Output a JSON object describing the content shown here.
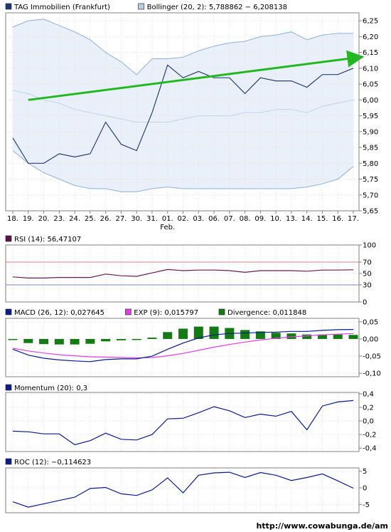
{
  "watermark": "http://www.cowabunga.de/am",
  "chart_data": [
    {
      "id": "price",
      "type": "line",
      "x_labels": [
        "18.",
        "19.",
        "20.",
        "23.",
        "24.",
        "25.",
        "26.",
        "27.",
        "30.",
        "31.",
        "01.",
        "02.",
        "03.",
        "06.",
        "07.",
        "08.",
        "09.",
        "10.",
        "13.",
        "14.",
        "15.",
        "16.",
        "17."
      ],
      "month_marker": {
        "label": "Feb.",
        "under": "01."
      },
      "ylim": [
        5.65,
        6.275
      ],
      "yticks": [
        "5,65",
        "5,70",
        "5,75",
        "5,80",
        "5,85",
        "5,90",
        "5,95",
        "6,00",
        "6,05",
        "6,10",
        "6,15",
        "6,20",
        "6,25"
      ],
      "legend": [
        {
          "label": "TAG Immobilien (Frankfurt)",
          "color": "#1c3a70"
        },
        {
          "label": "Bollinger (20, 2): 5,788862 − 6,208138",
          "color": "#b9cde6"
        }
      ],
      "series": [
        {
          "name": "TAG Immobilien (Frankfurt)",
          "color": "#2b3f73",
          "values": [
            5.88,
            5.8,
            5.8,
            5.83,
            5.82,
            5.83,
            5.93,
            5.86,
            5.84,
            5.96,
            6.11,
            6.07,
            6.09,
            6.07,
            6.07,
            6.02,
            6.07,
            6.06,
            6.06,
            6.04,
            6.08,
            6.08,
            6.1
          ]
        },
        {
          "name": "Bollinger upper",
          "color": "#8fb0dc",
          "values": [
            6.23,
            6.25,
            6.255,
            6.235,
            6.215,
            6.19,
            6.15,
            6.12,
            6.08,
            6.13,
            6.13,
            6.135,
            6.155,
            6.17,
            6.18,
            6.185,
            6.2,
            6.205,
            6.215,
            6.19,
            6.205,
            6.21,
            6.21
          ]
        },
        {
          "name": "Bollinger middle",
          "color": "#c0d4ea",
          "values": [
            6.03,
            6.02,
            6.0,
            5.99,
            5.97,
            5.96,
            5.95,
            5.94,
            5.93,
            5.93,
            5.93,
            5.94,
            5.95,
            5.95,
            5.95,
            5.96,
            5.96,
            5.97,
            5.97,
            5.96,
            5.98,
            5.99,
            6.0
          ]
        },
        {
          "name": "Bollinger lower",
          "color": "#8fb0dc",
          "values": [
            5.84,
            5.8,
            5.77,
            5.75,
            5.73,
            5.72,
            5.72,
            5.71,
            5.71,
            5.72,
            5.725,
            5.72,
            5.72,
            5.72,
            5.72,
            5.72,
            5.72,
            5.72,
            5.72,
            5.725,
            5.735,
            5.75,
            5.79
          ]
        }
      ],
      "trend_arrow": {
        "color": "#22b822",
        "from": [
          1,
          6.0
        ],
        "to": [
          22.8,
          6.135
        ]
      }
    },
    {
      "id": "rsi",
      "type": "line",
      "legend": [
        {
          "label": "RSI (14): 56,47107",
          "color": "#5e0e4a"
        }
      ],
      "ylim": [
        0,
        100
      ],
      "yticks": [
        "0",
        "30",
        "50",
        "70",
        "100"
      ],
      "reference_lines": [
        {
          "value": 70,
          "color": "#e08080"
        },
        {
          "value": 30,
          "color": "#8080e0"
        }
      ],
      "series": [
        {
          "name": "RSI (14): 56,47107",
          "color": "#6a1a55",
          "values": [
            44,
            42,
            42,
            43,
            43,
            43,
            49,
            46,
            45,
            51,
            57,
            55,
            56,
            56,
            55,
            52,
            55,
            55,
            55,
            54,
            56,
            56,
            56.5
          ]
        }
      ]
    },
    {
      "id": "macd",
      "type": "bar",
      "legend": [
        {
          "label": "MACD (26, 12): 0,027645",
          "color": "#0a1c8c"
        },
        {
          "label": "EXP (9): 0,015797",
          "color": "#e040e0"
        },
        {
          "label": "Divergence: 0,011848",
          "color": "#147a14"
        }
      ],
      "ylim": [
        -0.11,
        0.06
      ],
      "yticks": [
        "-0,10",
        "-0,05",
        "0,00",
        "0,05"
      ],
      "series": [
        {
          "name": "MACD (26, 12): 0,027645",
          "type": "line",
          "color": "#0a1c8c",
          "values": [
            -0.03,
            -0.047,
            -0.056,
            -0.061,
            -0.064,
            -0.066,
            -0.06,
            -0.058,
            -0.058,
            -0.05,
            -0.03,
            -0.012,
            0.003,
            0.012,
            0.016,
            0.017,
            0.019,
            0.02,
            0.022,
            0.022,
            0.025,
            0.027,
            0.0276
          ]
        },
        {
          "name": "EXP (9): 0,015797",
          "type": "line",
          "color": "#e040e0",
          "values": [
            -0.027,
            -0.035,
            -0.041,
            -0.046,
            -0.049,
            -0.052,
            -0.053,
            -0.054,
            -0.055,
            -0.054,
            -0.049,
            -0.042,
            -0.033,
            -0.024,
            -0.016,
            -0.009,
            -0.003,
            0.002,
            0.006,
            0.009,
            0.012,
            0.014,
            0.0158
          ]
        },
        {
          "name": "Divergence: 0,011848",
          "type": "bar",
          "color": "#147a14",
          "values": [
            -0.003,
            -0.012,
            -0.015,
            -0.016,
            -0.016,
            -0.014,
            -0.007,
            -0.004,
            -0.003,
            0.004,
            0.02,
            0.03,
            0.036,
            0.036,
            0.032,
            0.026,
            0.022,
            0.018,
            0.016,
            0.013,
            0.013,
            0.013,
            0.0118
          ]
        }
      ]
    },
    {
      "id": "momentum",
      "type": "line",
      "legend": [
        {
          "label": "Momentum (20): 0,3",
          "color": "#0a1c8c"
        }
      ],
      "ylim": [
        -0.45,
        0.42
      ],
      "yticks": [
        "-0,4",
        "-0,2",
        "0,0",
        "0,2",
        "0,4"
      ],
      "series": [
        {
          "name": "Momentum (20): 0,3",
          "color": "#0a1c8c",
          "values": [
            -0.15,
            -0.16,
            -0.19,
            -0.19,
            -0.35,
            -0.29,
            -0.18,
            -0.27,
            -0.28,
            -0.2,
            0.03,
            0.04,
            0.12,
            0.21,
            0.15,
            0.05,
            0.1,
            0.07,
            0.14,
            -0.13,
            0.22,
            0.28,
            0.3
          ]
        }
      ]
    },
    {
      "id": "roc",
      "type": "line",
      "legend": [
        {
          "label": "ROC (12): −0,114623",
          "color": "#0a1c8c"
        }
      ],
      "ylim": [
        -7.5,
        6
      ],
      "yticks": [
        "-5",
        "0",
        "5"
      ],
      "series": [
        {
          "name": "ROC (12): −0,114623",
          "color": "#0a1c8c",
          "values": [
            -4.2,
            -5.8,
            -4.8,
            -3.8,
            -2.8,
            -0.2,
            0.1,
            -1.8,
            -2.3,
            -0.6,
            3.0,
            -1.5,
            3.8,
            4.5,
            4.7,
            3.1,
            4.6,
            3.8,
            2.2,
            3.1,
            4.2,
            2.1,
            -0.1
          ]
        }
      ]
    }
  ]
}
